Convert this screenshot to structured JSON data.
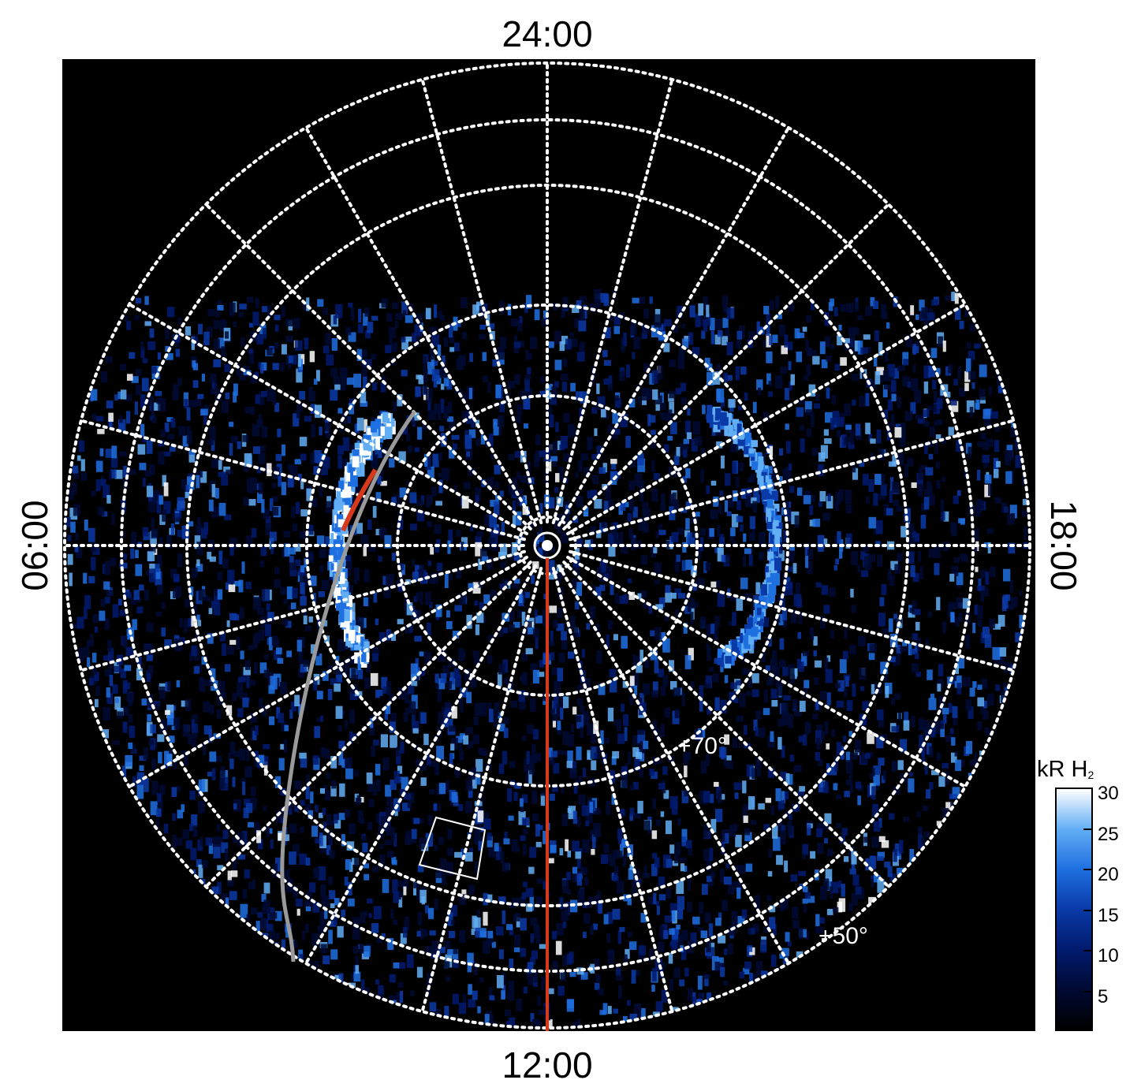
{
  "labels": {
    "top": "24:00",
    "bottom": "12:00",
    "left": "06:00",
    "right": "18:00",
    "lat_70": "+70°",
    "lat_50": "+50°"
  },
  "colorbar": {
    "title": "kR H",
    "title_subscript": "2",
    "ticks": [
      "30",
      "25",
      "20",
      "15",
      "10",
      "5"
    ],
    "tick_values": [
      30,
      25,
      20,
      15,
      10,
      5
    ],
    "range": [
      0,
      30
    ],
    "colormap": [
      "#000000",
      "#000a33",
      "#001a6e",
      "#0a3aa8",
      "#1e6fe0",
      "#62aef5",
      "#ffffff"
    ]
  },
  "map": {
    "projection": "polar",
    "background": "#000000",
    "grid_color": "#ffffff",
    "meridian_line_color": "#d63a1a",
    "arc_grey_color": "#9a9a9a",
    "arc_red_color": "#d63a1a"
  }
}
